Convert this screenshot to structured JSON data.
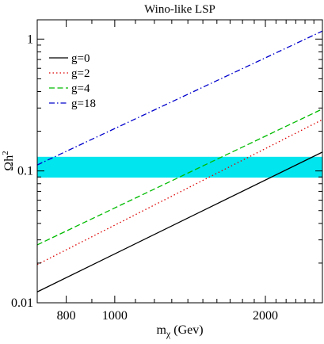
{
  "chart_data": {
    "type": "line",
    "title": "Wino-like LSP",
    "xlabel": {
      "main": "m",
      "sub": "χ",
      "rest": " (Gev)"
    },
    "ylabel": {
      "main": "Ωh",
      "sup": "2"
    },
    "xscale": "log",
    "yscale": "log",
    "xlim": [
      700,
      2600
    ],
    "ylim": [
      0.01,
      1.4
    ],
    "x_ticks": [
      {
        "value": 800,
        "label": "800"
      },
      {
        "value": 1000,
        "label": "1000"
      },
      {
        "value": 2000,
        "label": "2000"
      }
    ],
    "y_ticks": [
      {
        "value": 0.01,
        "label": "0.01"
      },
      {
        "value": 0.1,
        "label": "0.1"
      },
      {
        "value": 1,
        "label": "1"
      }
    ],
    "band": {
      "y_low": 0.089,
      "y_high": 0.128,
      "color": "#00e5ee"
    },
    "legend_position": "top-left",
    "grid": false,
    "series": [
      {
        "name": "g=0",
        "color": "#000000",
        "dash": "solid",
        "x": [
          700,
          2600
        ],
        "y": [
          0.0121,
          0.139
        ]
      },
      {
        "name": "g=2",
        "color": "#dd0000",
        "dash": "dotted",
        "x": [
          700,
          2600
        ],
        "y": [
          0.0195,
          0.245
        ]
      },
      {
        "name": "g=4",
        "color": "#00bb00",
        "dash": "dashed",
        "x": [
          700,
          2600
        ],
        "y": [
          0.0275,
          0.295
        ]
      },
      {
        "name": "g=18",
        "color": "#0000cc",
        "dash": "dashdot",
        "x": [
          700,
          2600
        ],
        "y": [
          0.111,
          1.15
        ]
      }
    ]
  }
}
